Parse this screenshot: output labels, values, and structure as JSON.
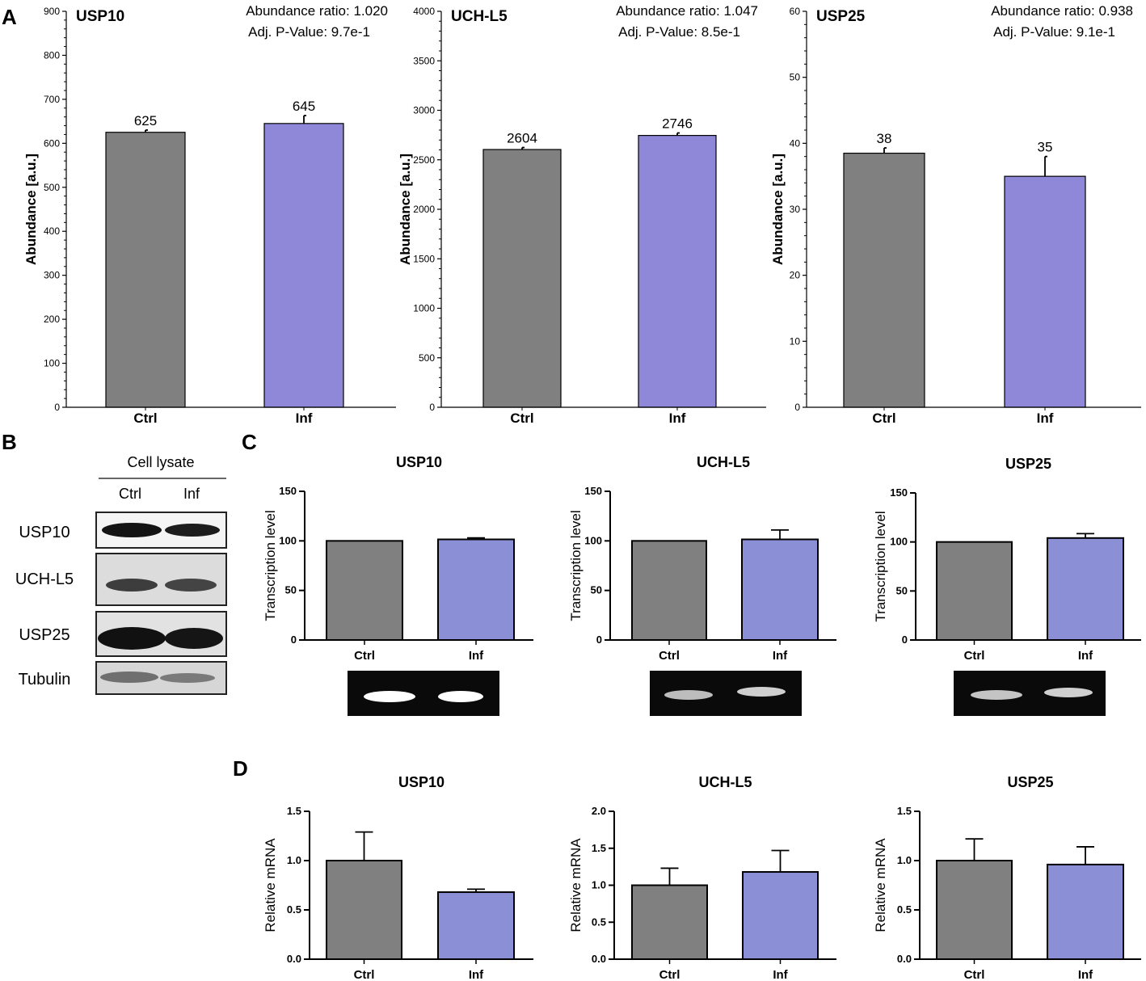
{
  "colors": {
    "ctrl": "#808080",
    "inf_a": "#8f88d8",
    "inf_cd": "#8b8fd6",
    "axis": "#000000",
    "gel_bg": "#0a0a0a",
    "band": "#ffffff"
  },
  "panel_labels": {
    "A": "A",
    "B": "B",
    "C": "C",
    "D": "D"
  },
  "western_blot": {
    "header": "Cell lysate",
    "lanes": [
      "Ctrl",
      "Inf"
    ],
    "rows": [
      "USP10",
      "UCH-L5",
      "USP25",
      "Tubulin"
    ]
  },
  "chart_data": [
    {
      "id": "A1",
      "panel": "A",
      "type": "bar",
      "title": "USP10",
      "annotation_ratio": "Abundance ratio: 1.020",
      "annotation_pvalue": "Adj. P-Value: 9.7e-1",
      "categories": [
        "Ctrl",
        "Inf"
      ],
      "values": [
        625,
        645
      ],
      "errors": [
        5,
        18
      ],
      "value_labels": [
        "625",
        "645"
      ],
      "ylabel": "Abundance [a.u.]",
      "ylim": [
        0,
        900
      ],
      "yticks": [
        0,
        100,
        200,
        300,
        400,
        500,
        600,
        700,
        800,
        900
      ],
      "ytick_labels": [
        "0",
        "100",
        "200",
        "300",
        "400",
        "500",
        "600",
        "700",
        "800",
        "900"
      ]
    },
    {
      "id": "A2",
      "panel": "A",
      "type": "bar",
      "title": "UCH-L5",
      "annotation_ratio": "Abundance ratio: 1.047",
      "annotation_pvalue": "Adj. P-Value: 8.5e-1",
      "categories": [
        "Ctrl",
        "Inf"
      ],
      "values": [
        2604,
        2746
      ],
      "errors": [
        20,
        25
      ],
      "value_labels": [
        "2604",
        "2746"
      ],
      "ylabel": "Abundance [a.u.]",
      "ylim": [
        0,
        4000
      ],
      "yticks": [
        0,
        500,
        1000,
        1500,
        2000,
        2500,
        3000,
        3500,
        4000
      ],
      "ytick_labels": [
        "0",
        "500",
        "1000",
        "1500",
        "2000",
        "2500",
        "3000",
        "3500",
        "4000"
      ]
    },
    {
      "id": "A3",
      "panel": "A",
      "type": "bar",
      "title": "USP25",
      "annotation_ratio": "Abundance ratio: 0.938",
      "annotation_pvalue": "Adj. P-Value: 9.1e-1",
      "categories": [
        "Ctrl",
        "Inf"
      ],
      "values": [
        38.5,
        35
      ],
      "errors": [
        0.8,
        3
      ],
      "value_labels": [
        "38",
        "35"
      ],
      "ylabel": "Abundance [a.u.]",
      "ylim": [
        0,
        60
      ],
      "yticks": [
        0,
        10,
        20,
        30,
        40,
        50,
        60
      ],
      "ytick_labels": [
        "0",
        "10",
        "20",
        "30",
        "40",
        "50",
        "60"
      ]
    },
    {
      "id": "C1",
      "panel": "C",
      "type": "bar",
      "title": "USP10",
      "categories": [
        "Ctrl",
        "Inf"
      ],
      "values": [
        100,
        101.5
      ],
      "errors": [
        0,
        1.5
      ],
      "ylabel": "Transcription level",
      "ylim": [
        0,
        150
      ],
      "yticks": [
        0,
        50,
        100,
        150
      ],
      "ytick_labels": [
        "0",
        "50",
        "100",
        "150"
      ]
    },
    {
      "id": "C2",
      "panel": "C",
      "type": "bar",
      "title": "UCH-L5",
      "categories": [
        "Ctrl",
        "Inf"
      ],
      "values": [
        100,
        101.5
      ],
      "errors": [
        0,
        9.5
      ],
      "ylabel": "Transcription level",
      "ylim": [
        0,
        150
      ],
      "yticks": [
        0,
        50,
        100,
        150
      ],
      "ytick_labels": [
        "0",
        "50",
        "100",
        "150"
      ]
    },
    {
      "id": "C3",
      "panel": "C",
      "type": "bar",
      "title": "USP25",
      "categories": [
        "Ctrl",
        "Inf"
      ],
      "values": [
        100,
        104
      ],
      "errors": [
        0,
        4.5
      ],
      "ylabel": "Transcription level",
      "ylim": [
        0,
        150
      ],
      "yticks": [
        0,
        50,
        100,
        150
      ],
      "ytick_labels": [
        "0",
        "50",
        "100",
        "150"
      ]
    },
    {
      "id": "D1",
      "panel": "D",
      "type": "bar",
      "title": "USP10",
      "categories": [
        "Ctrl",
        "Inf"
      ],
      "values": [
        1.0,
        0.68
      ],
      "errors": [
        0.29,
        0.03
      ],
      "ylabel": "Relative mRNA",
      "ylim": [
        0,
        1.5
      ],
      "yticks": [
        0,
        0.5,
        1.0,
        1.5
      ],
      "ytick_labels": [
        "0.0",
        "0.5",
        "1.0",
        "1.5"
      ]
    },
    {
      "id": "D2",
      "panel": "D",
      "type": "bar",
      "title": "UCH-L5",
      "categories": [
        "Ctrl",
        "Inf"
      ],
      "values": [
        1.0,
        1.18
      ],
      "errors": [
        0.23,
        0.29
      ],
      "ylabel": "Relative mRNA",
      "ylim": [
        0,
        2.0
      ],
      "yticks": [
        0,
        0.5,
        1.0,
        1.5,
        2.0
      ],
      "ytick_labels": [
        "0.0",
        "0.5",
        "1.0",
        "1.5",
        "2.0"
      ]
    },
    {
      "id": "D3",
      "panel": "D",
      "type": "bar",
      "title": "USP25",
      "categories": [
        "Ctrl",
        "Inf"
      ],
      "values": [
        1.0,
        0.96
      ],
      "errors": [
        0.22,
        0.18
      ],
      "ylabel": "Relative mRNA",
      "ylim": [
        0,
        1.5
      ],
      "yticks": [
        0,
        0.5,
        1.0,
        1.5
      ],
      "ytick_labels": [
        "0.0",
        "0.5",
        "1.0",
        "1.5"
      ]
    }
  ]
}
